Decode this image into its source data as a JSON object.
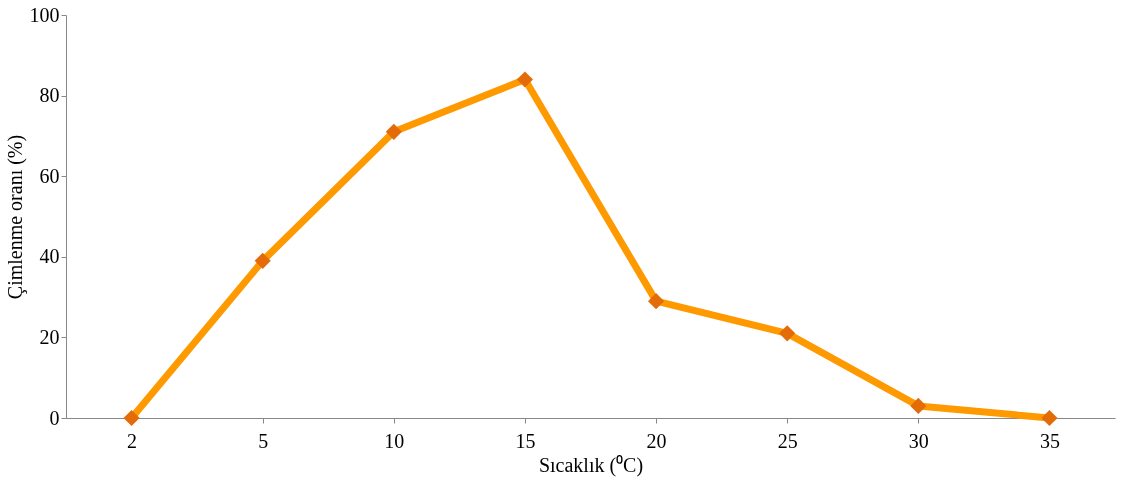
{
  "chart_data": {
    "type": "line",
    "xlabel": "Sıcaklık  (⁰C)",
    "ylabel": "Çimlenme  oranı  (%)",
    "categories": [
      "2",
      "5",
      "10",
      "15",
      "20",
      "25",
      "30",
      "35"
    ],
    "series": [
      {
        "color": "#ff9900",
        "values": [
          0,
          39,
          71,
          84,
          29,
          21,
          3,
          0
        ]
      }
    ],
    "ylim": [
      0,
      100
    ],
    "yticks": [
      0,
      20,
      40,
      60,
      80,
      100
    ],
    "grid": false,
    "legend": false,
    "marker": "diamond",
    "line_style": "solid"
  }
}
